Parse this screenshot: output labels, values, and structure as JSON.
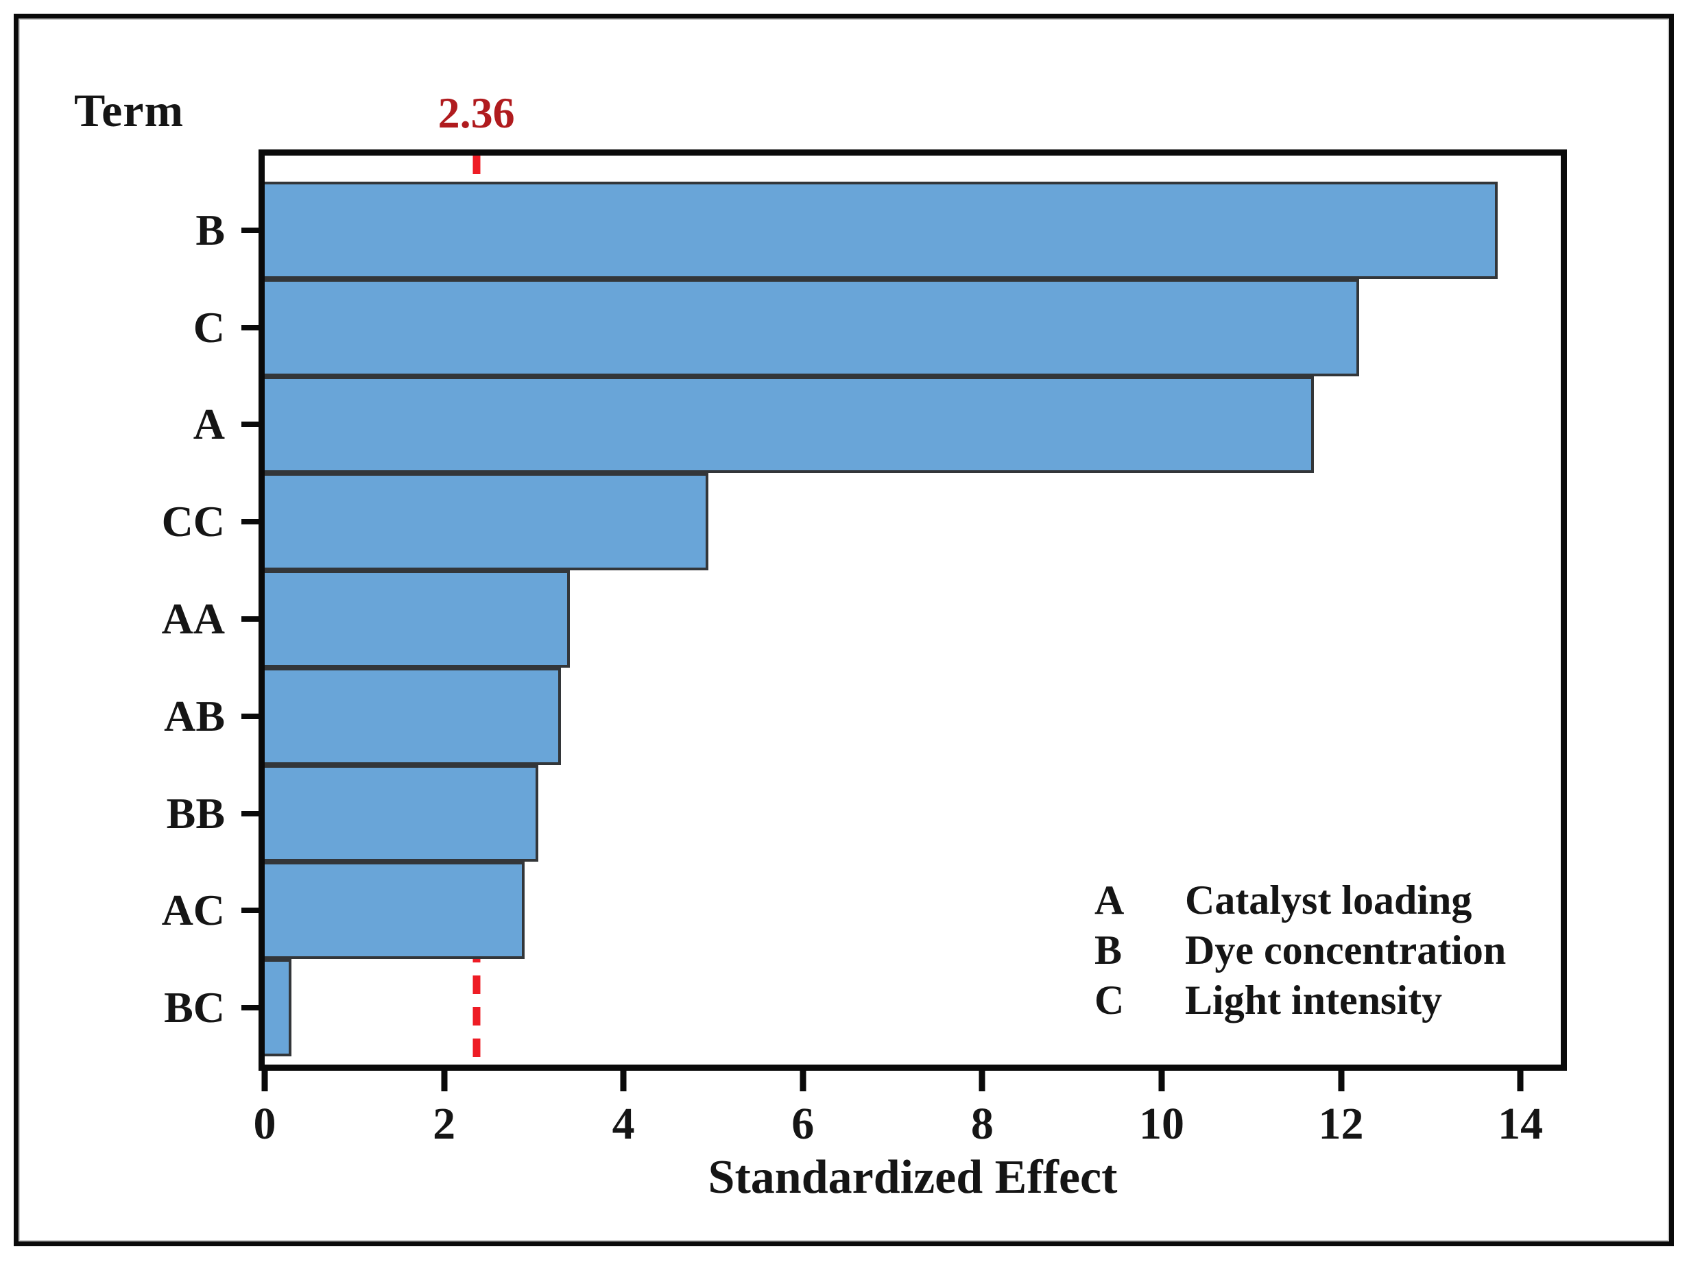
{
  "chart_data": {
    "type": "bar",
    "orientation": "horizontal",
    "term_column_title": "Term",
    "categories": [
      "B",
      "C",
      "A",
      "CC",
      "AA",
      "AB",
      "BB",
      "AC",
      "BC"
    ],
    "values": [
      13.75,
      12.2,
      11.7,
      4.95,
      3.4,
      3.3,
      3.05,
      2.9,
      0.3
    ],
    "title": "",
    "xlabel": "Standardized Effect",
    "ylabel": "Term",
    "xticks": [
      0,
      2,
      4,
      6,
      8,
      10,
      12,
      14
    ],
    "xlim": [
      0,
      14.45
    ],
    "grid": false,
    "reference_line": {
      "value": 2.36,
      "label": "2.36",
      "style": "dashed"
    },
    "legend_position": "inside-bottom-right",
    "legend": [
      {
        "code": "A",
        "label": "Catalyst loading"
      },
      {
        "code": "B",
        "label": "Dye concentration"
      },
      {
        "code": "C",
        "label": "Light intensity"
      }
    ],
    "colors": {
      "bar_fill": "#69a5d8",
      "bar_border": "#333639",
      "frame": "#0a0a0a",
      "reference_line": "#ee1c25",
      "reference_label": "#b01b1e",
      "text": "#151515"
    }
  }
}
